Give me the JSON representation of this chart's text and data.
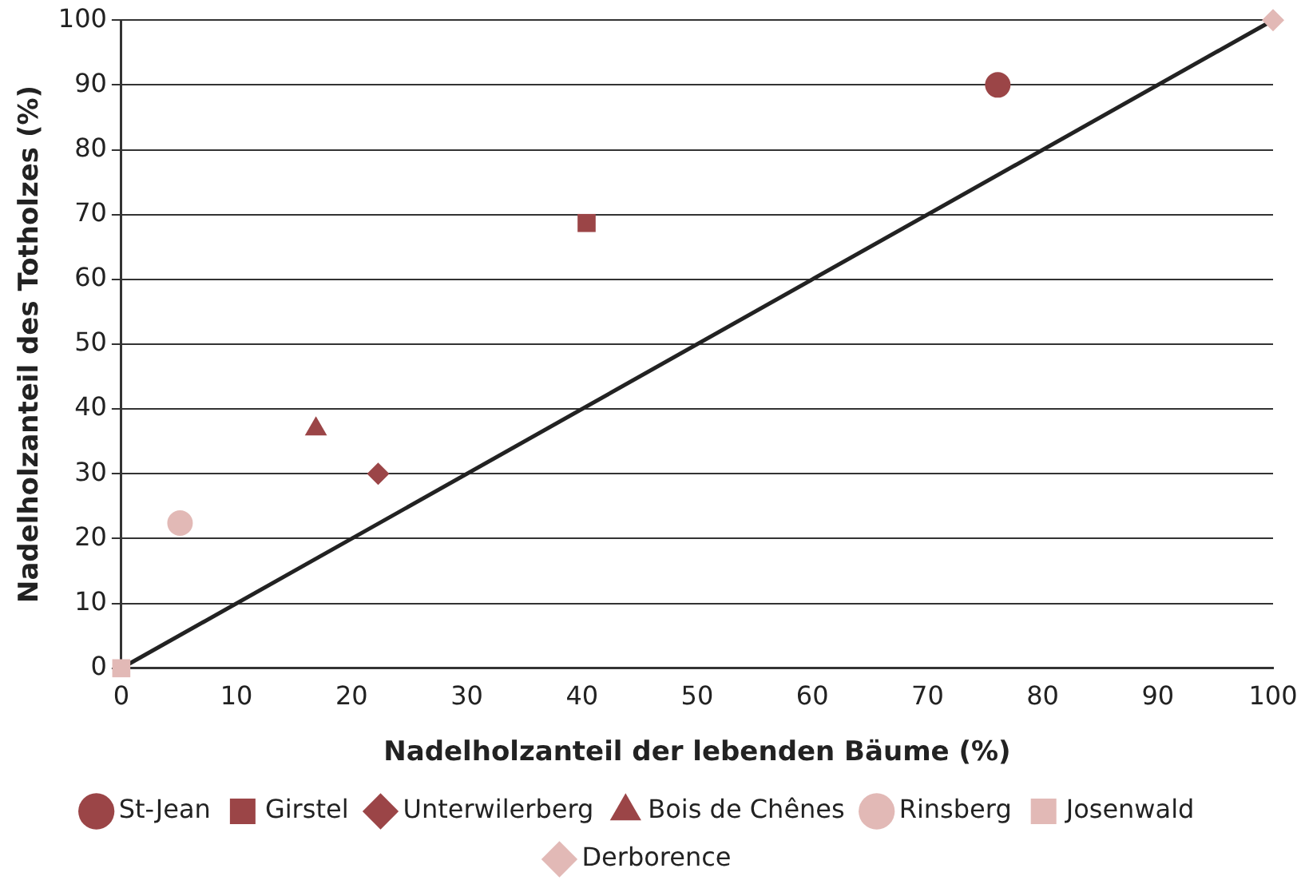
{
  "chart_data": {
    "type": "scatter",
    "xlabel": "Nadelholzanteil der lebenden Bäume (%)",
    "ylabel": "Nadelholzanteil des Totholzes (%)",
    "xlim": [
      0,
      100
    ],
    "xticks": [
      0,
      10,
      20,
      30,
      40,
      50,
      60,
      70,
      80,
      90,
      100
    ],
    "ylim": [
      0,
      100
    ],
    "yticks": [
      0,
      10,
      20,
      30,
      40,
      50,
      60,
      70,
      80,
      90,
      100
    ],
    "grid": "y",
    "legend": "bottom",
    "series": [
      {
        "name": "St-Jean",
        "color": "#9b4547",
        "marker": "circle",
        "x": [
          76.1
        ],
        "values": [
          90
        ]
      },
      {
        "name": "Girstel",
        "color": "#9b4547",
        "marker": "square",
        "x": [
          40.4
        ],
        "values": [
          68.7
        ]
      },
      {
        "name": "Unterwilerberg",
        "color": "#9b4547",
        "marker": "diamond",
        "x": [
          22.3
        ],
        "values": [
          30
        ]
      },
      {
        "name": "Bois de Chênes",
        "color": "#9b4547",
        "marker": "triangle",
        "x": [
          16.9
        ],
        "values": [
          36.9
        ]
      },
      {
        "name": "Rinsberg",
        "color": "#e2b9b6",
        "marker": "circle",
        "x": [
          5.1
        ],
        "values": [
          22.4
        ]
      },
      {
        "name": "Josenwald",
        "color": "#e2b9b6",
        "marker": "square",
        "x": [
          0
        ],
        "values": [
          0
        ]
      },
      {
        "name": "Derborence",
        "color": "#e2b9b6",
        "marker": "diamond",
        "x": [
          100
        ],
        "values": [
          100
        ]
      },
      {
        "type": "line",
        "color": "#222222",
        "marker": "none",
        "line_style": "solid",
        "x": [
          0,
          100
        ],
        "values": [
          0,
          100
        ]
      }
    ]
  }
}
